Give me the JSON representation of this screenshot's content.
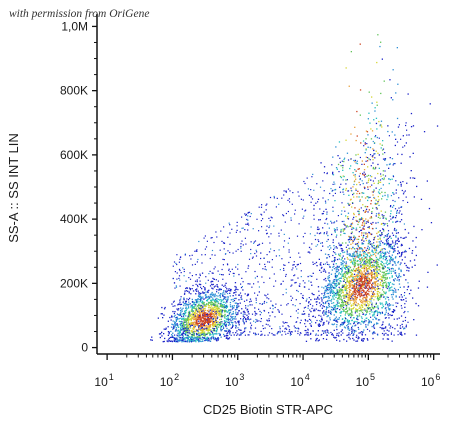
{
  "watermark": "with permission from OriGene",
  "chart_data": {
    "type": "scatter",
    "title": "",
    "xlabel": "CD25 Biotin STR-APC",
    "ylabel": "SS-A :: SS INT LIN",
    "x_scale": "log",
    "xlim": [
      7,
      1250000
    ],
    "ylim": [
      -20000,
      1020000
    ],
    "x_ticks": [
      {
        "value": 10,
        "base": "10",
        "exp": "1"
      },
      {
        "value": 100,
        "base": "10",
        "exp": "2"
      },
      {
        "value": 1000,
        "base": "10",
        "exp": "3"
      },
      {
        "value": 10000,
        "base": "10",
        "exp": "4"
      },
      {
        "value": 100000,
        "base": "10",
        "exp": "5"
      },
      {
        "value": 1000000,
        "base": "10",
        "exp": "6"
      }
    ],
    "y_ticks": [
      {
        "value": 0,
        "label": "0"
      },
      {
        "value": 200000,
        "label": "200K"
      },
      {
        "value": 400000,
        "label": "400K"
      },
      {
        "value": 600000,
        "label": "600K"
      },
      {
        "value": 800000,
        "label": "800K"
      },
      {
        "value": 1000000,
        "label": "1,0M"
      }
    ],
    "density_colors": [
      "#1a22c8",
      "#2d8fd6",
      "#27c0c0",
      "#62c45a",
      "#d6d634",
      "#e8a03a",
      "#cc4422"
    ],
    "populations": [
      {
        "name": "",
        "x_center": 300,
        "y_center": 90000,
        "events": 1500
      },
      {
        "name": "",
        "x_center": 80000,
        "y_center": 190000,
        "events": 2500
      }
    ],
    "series": [
      {
        "name": "",
        "points": [
          [
            250,
            70000
          ],
          [
            380,
            95000
          ],
          [
            180,
            110000
          ],
          [
            520,
            80000
          ],
          [
            300,
            60000
          ],
          [
            45000,
            160000
          ],
          [
            95000,
            210000
          ],
          [
            70000,
            180000
          ],
          [
            120000,
            240000
          ],
          [
            60000,
            230000
          ],
          [
            150000,
            300000
          ],
          [
            110000,
            420000
          ],
          [
            200000,
            560000
          ],
          [
            90000,
            150000
          ],
          [
            30000,
            200000
          ],
          [
            8000,
            260000
          ],
          [
            3000,
            300000
          ],
          [
            1500,
            200000
          ],
          [
            130000,
            700000
          ],
          [
            160000,
            900000
          ],
          [
            220000,
            780000
          ]
        ]
      }
    ]
  }
}
